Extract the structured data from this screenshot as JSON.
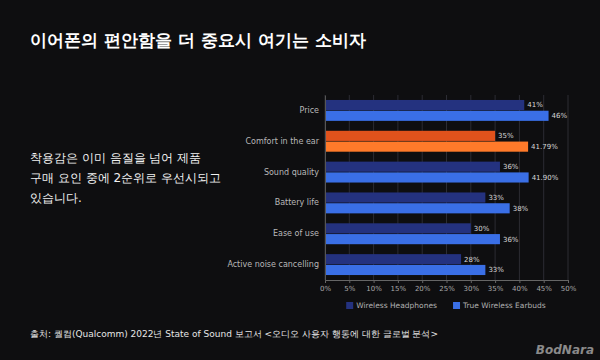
{
  "slide": {
    "title": "이어폰의 편안함을 더 중요시 여기는 소비자",
    "text_lines": [
      "착용감은 이미 음질을 넘어 제품",
      "구매 요인 중에 2순위로 우선시되고",
      "있습니다."
    ],
    "source": "출처: 퀄컴(Qualcomm) 2022년 State of Sound 보고서 <오디오 사용자 행동에 대한 글로벌 분석>",
    "watermark": "BodNara"
  },
  "chart_data": {
    "type": "bar",
    "orientation": "horizontal",
    "categories": [
      "Price",
      "Comfort in the ear",
      "Sound quality",
      "Battery life",
      "Ease of use",
      "Active noise cancelling"
    ],
    "series": [
      {
        "name": "Wireless Headphones",
        "color": "#24327f",
        "colors": [
          "#24327f",
          "#e0521c",
          "#24327f",
          "#24327f",
          "#24327f",
          "#24327f"
        ],
        "values": [
          41,
          35,
          36,
          33,
          30,
          28
        ],
        "value_labels": [
          "41%",
          "35%",
          "36%",
          "33%",
          "30%",
          "28%"
        ]
      },
      {
        "name": "True Wireless Earbuds",
        "color": "#3a6fe6",
        "colors": [
          "#3a6fe6",
          "#ff7a2a",
          "#3a6fe6",
          "#3a6fe6",
          "#3a6fe6",
          "#3a6fe6"
        ],
        "values": [
          46,
          41.79,
          41.9,
          38,
          36,
          33
        ],
        "value_labels": [
          "46%",
          "41.79%",
          "41.90%",
          "38%",
          "36%",
          "33%"
        ]
      }
    ],
    "xlim": [
      0,
      50
    ],
    "xticks": [
      {
        "value": 0,
        "label": "0%"
      },
      {
        "value": 5,
        "label": "5%"
      },
      {
        "value": 10,
        "label": "10%"
      },
      {
        "value": 15,
        "label": "15%"
      },
      {
        "value": 20,
        "label": "20%"
      },
      {
        "value": 25,
        "label": "25%"
      },
      {
        "value": 30,
        "label": "30%"
      },
      {
        "value": 35,
        "label": "35%"
      },
      {
        "value": 40,
        "label": "40%"
      },
      {
        "value": 45,
        "label": "45%"
      },
      {
        "value": 50,
        "label": "50%"
      }
    ],
    "grid": true,
    "legend": "bottom",
    "data_labels": true
  }
}
